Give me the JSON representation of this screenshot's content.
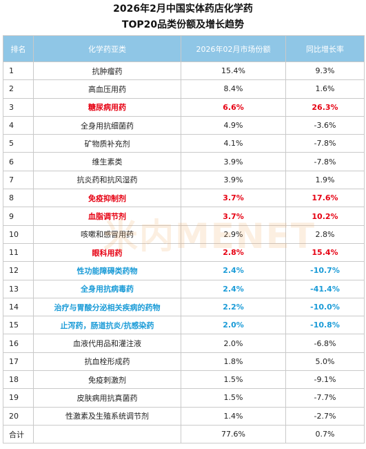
{
  "title_line1": "2026年2月中国实体药店化学药",
  "title_line2": "TOP20品类份额及增长趋势",
  "watermark": "米内MENET",
  "headers": [
    "排名",
    "化学药亚类",
    "2026年02月市场份额",
    "同比增长率"
  ],
  "colors": {
    "header_bg": "#8fc6e6",
    "highlight_red": "#e60012",
    "highlight_blue": "#1a9bd7"
  },
  "rows": [
    {
      "rank": "1",
      "category": "抗肿瘤药",
      "share": "15.4%",
      "growth": "9.3%",
      "style": ""
    },
    {
      "rank": "2",
      "category": "高血压用药",
      "share": "8.4%",
      "growth": "1.6%",
      "style": ""
    },
    {
      "rank": "3",
      "category": "糖尿病用药",
      "share": "6.6%",
      "growth": "26.3%",
      "style": "red"
    },
    {
      "rank": "4",
      "category": "全身用抗细菌药",
      "share": "4.9%",
      "growth": "-3.6%",
      "style": ""
    },
    {
      "rank": "5",
      "category": "矿物质补充剂",
      "share": "4.1%",
      "growth": "-7.8%",
      "style": ""
    },
    {
      "rank": "6",
      "category": "维生素类",
      "share": "3.9%",
      "growth": "-7.8%",
      "style": ""
    },
    {
      "rank": "7",
      "category": "抗炎药和抗风湿药",
      "share": "3.9%",
      "growth": "1.9%",
      "style": ""
    },
    {
      "rank": "8",
      "category": "免疫抑制剂",
      "share": "3.7%",
      "growth": "17.6%",
      "style": "red"
    },
    {
      "rank": "9",
      "category": "血脂调节剂",
      "share": "3.7%",
      "growth": "10.2%",
      "style": "red"
    },
    {
      "rank": "10",
      "category": "咳嗽和感冒用药",
      "share": "2.9%",
      "growth": "2.8%",
      "style": ""
    },
    {
      "rank": "11",
      "category": "眼科用药",
      "share": "2.8%",
      "growth": "15.4%",
      "style": "red"
    },
    {
      "rank": "12",
      "category": "性功能障碍类药物",
      "share": "2.4%",
      "growth": "-10.7%",
      "style": "blue"
    },
    {
      "rank": "13",
      "category": "全身用抗病毒药",
      "share": "2.4%",
      "growth": "-41.4%",
      "style": "blue"
    },
    {
      "rank": "14",
      "category": "治疗与胃酸分泌相关疾病的药物",
      "share": "2.2%",
      "growth": "-10.0%",
      "style": "blue"
    },
    {
      "rank": "15",
      "category": "止泻药，肠道抗炎/抗感染药",
      "share": "2.0%",
      "growth": "-10.8%",
      "style": "blue"
    },
    {
      "rank": "16",
      "category": "血液代用品和灌注液",
      "share": "2.0%",
      "growth": "-6.8%",
      "style": ""
    },
    {
      "rank": "17",
      "category": "抗血栓形成药",
      "share": "1.8%",
      "growth": "5.0%",
      "style": ""
    },
    {
      "rank": "18",
      "category": "免疫刺激剂",
      "share": "1.5%",
      "growth": "-9.1%",
      "style": ""
    },
    {
      "rank": "19",
      "category": "皮肤病用抗真菌药",
      "share": "1.5%",
      "growth": "-7.7%",
      "style": ""
    },
    {
      "rank": "20",
      "category": "性激素及生殖系统调节剂",
      "share": "1.4%",
      "growth": "-2.7%",
      "style": ""
    }
  ],
  "total": {
    "label": "合计",
    "category": "",
    "share": "77.6%",
    "growth": "0.7%"
  }
}
